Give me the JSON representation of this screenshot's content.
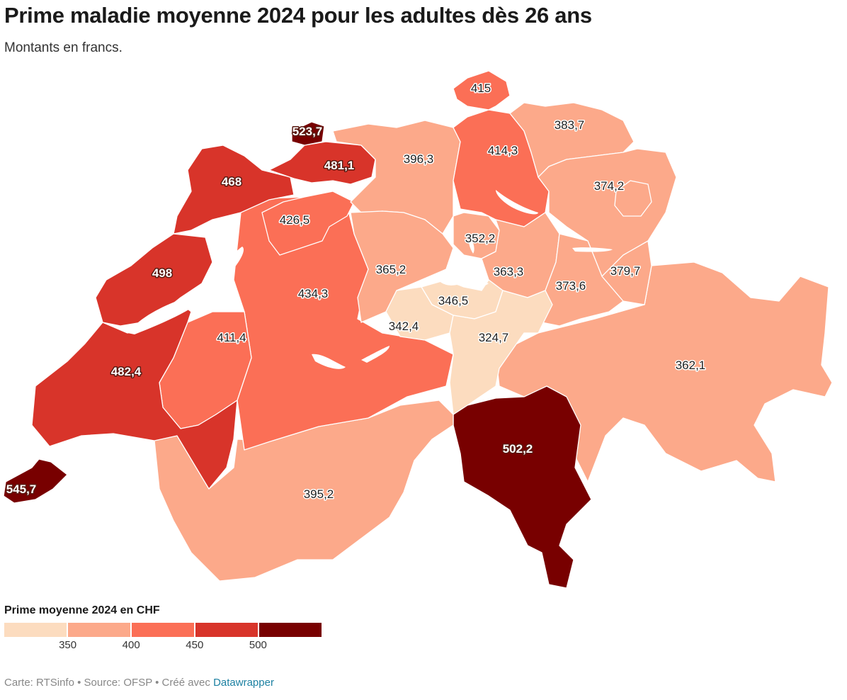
{
  "title": "Prime maladie moyenne 2024 pour les adultes dès 26 ans",
  "subtitle": "Montants en francs.",
  "colors": {
    "c1": "#fcdcbf",
    "c2": "#fca98a",
    "c3": "#fb6f56",
    "c4": "#d8342a",
    "c5": "#780000"
  },
  "regions": [
    {
      "id": "ge",
      "value": 545.7,
      "label": "545,7"
    },
    {
      "id": "vd",
      "value": 482.4,
      "label": "482,4"
    },
    {
      "id": "ne",
      "value": 498,
      "label": "498"
    },
    {
      "id": "ju",
      "value": 468,
      "label": "468"
    },
    {
      "id": "bs",
      "value": 523.7,
      "label": "523,7"
    },
    {
      "id": "bl",
      "value": 481.1,
      "label": "481,1"
    },
    {
      "id": "so",
      "value": 426.5,
      "label": "426,5"
    },
    {
      "id": "be",
      "value": 434.3,
      "label": "434,3"
    },
    {
      "id": "fr",
      "value": 411.4,
      "label": "411,4"
    },
    {
      "id": "vs",
      "value": 395.2,
      "label": "395,2"
    },
    {
      "id": "ag",
      "value": 396.3,
      "label": "396,3"
    },
    {
      "id": "zh",
      "value": 414.3,
      "label": "414,3"
    },
    {
      "id": "sh",
      "value": 415,
      "label": "415"
    },
    {
      "id": "tg",
      "value": 383.7,
      "label": "383,7"
    },
    {
      "id": "sg",
      "value": 374.2,
      "label": "374,2"
    },
    {
      "id": "zg",
      "value": 352.2,
      "label": "352,2"
    },
    {
      "id": "lu",
      "value": 365.2,
      "label": "365,2"
    },
    {
      "id": "sz",
      "value": 363.3,
      "label": "363,3"
    },
    {
      "id": "gl",
      "value": 373.6,
      "label": "373,6"
    },
    {
      "id": "gr_n",
      "value": 379.7,
      "label": "379,7"
    },
    {
      "id": "nw",
      "value": 346.5,
      "label": "346,5"
    },
    {
      "id": "ow",
      "value": 342.4,
      "label": "342,4"
    },
    {
      "id": "ur",
      "value": 324.7,
      "label": "324,7"
    },
    {
      "id": "gr",
      "value": 362.1,
      "label": "362,1"
    },
    {
      "id": "ti",
      "value": 502.2,
      "label": "502,2"
    }
  ],
  "legend": {
    "title": "Prime moyenne 2024 en CHF",
    "ticks": [
      "350",
      "400",
      "450",
      "500"
    ]
  },
  "footer": {
    "text": "Carte: RTSinfo • Source: OFSP • Créé avec ",
    "link": "Datawrapper"
  }
}
